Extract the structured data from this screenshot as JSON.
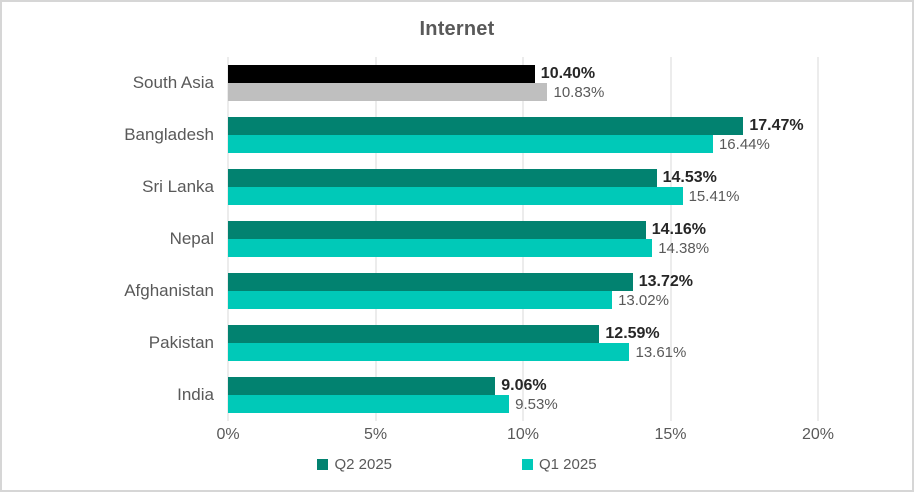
{
  "title": "Internet",
  "chart_data": {
    "type": "bar",
    "orientation": "horizontal",
    "title": "Internet",
    "categories": [
      "South Asia",
      "Bangladesh",
      "Sri Lanka",
      "Nepal",
      "Afghanistan",
      "Pakistan",
      "India"
    ],
    "series": [
      {
        "name": "Q2 2025",
        "color": "#028270",
        "values": [
          10.4,
          17.47,
          14.53,
          14.16,
          13.72,
          12.59,
          9.06
        ],
        "labels": [
          "10.40%",
          "17.47%",
          "14.53%",
          "14.16%",
          "13.72%",
          "12.59%",
          "9.06%"
        ]
      },
      {
        "name": "Q1 2025",
        "color": "#00C9B8",
        "values": [
          10.83,
          16.44,
          15.41,
          14.38,
          13.02,
          13.61,
          9.53
        ],
        "labels": [
          "10.83%",
          "16.44%",
          "15.41%",
          "14.38%",
          "13.02%",
          "13.61%",
          "9.53%"
        ]
      }
    ],
    "category_color_overrides": {
      "South Asia": [
        "#000000",
        "#BFBFBF"
      ]
    },
    "xlim": [
      0,
      20
    ],
    "x_ticks": [
      "0%",
      "5%",
      "10%",
      "15%",
      "20%"
    ],
    "grid": true,
    "legend_position": "bottom",
    "colors": {
      "title_text": "#595959",
      "axis_text": "#595959",
      "category_text": "#595959",
      "gridline": "#d9d9d9",
      "series1_label_text": "#262626",
      "series2_label_text": "#595959",
      "border": "#d6d6d6",
      "background": "#ffffff"
    }
  }
}
